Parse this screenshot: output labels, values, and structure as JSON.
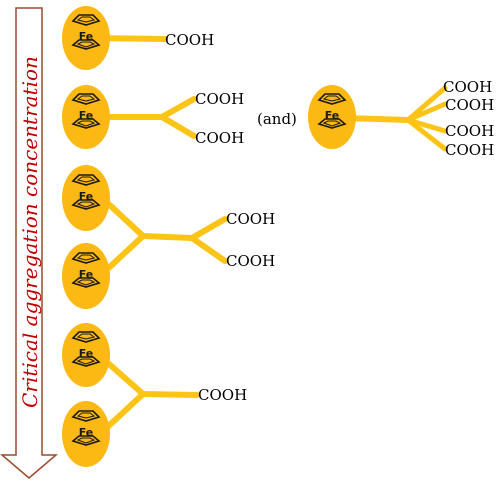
{
  "axis": {
    "label": "Critical aggregation concentration",
    "label_color": "#c00000",
    "arrow_stroke": "#9b4a2c"
  },
  "colors": {
    "ferrocene_fill": "#fdb913",
    "linker": "#fdc418",
    "ring_stroke": "#1a1a1a"
  },
  "metal_label": "Fe",
  "group_label": "COOH",
  "connector_text": "(and)",
  "rows": [
    {
      "id": "row1",
      "ferrocenes": 1,
      "acid_groups": 1
    },
    {
      "id": "row2",
      "ferrocenes": 1,
      "acid_groups": 2,
      "alternate": {
        "ferrocenes": 1,
        "acid_groups": 4
      }
    },
    {
      "id": "row3",
      "ferrocenes": 2,
      "acid_groups": 2
    },
    {
      "id": "row4",
      "ferrocenes": 2,
      "acid_groups": 1
    }
  ]
}
